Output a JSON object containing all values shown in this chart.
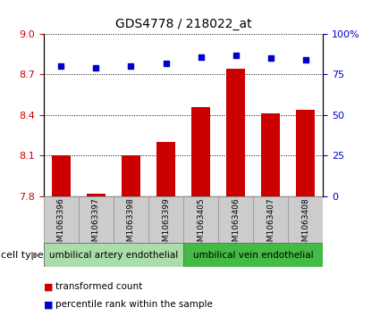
{
  "title": "GDS4778 / 218022_at",
  "samples": [
    "GSM1063396",
    "GSM1063397",
    "GSM1063398",
    "GSM1063399",
    "GSM1063405",
    "GSM1063406",
    "GSM1063407",
    "GSM1063408"
  ],
  "transformed_count": [
    8.1,
    7.82,
    8.1,
    8.2,
    8.46,
    8.74,
    8.41,
    8.44
  ],
  "percentile_rank": [
    80,
    79,
    80,
    82,
    86,
    87,
    85,
    84
  ],
  "ylim_left": [
    7.8,
    9.0
  ],
  "ylim_right": [
    0,
    100
  ],
  "yticks_left": [
    7.8,
    8.1,
    8.4,
    8.7,
    9.0
  ],
  "yticks_right": [
    0,
    25,
    50,
    75,
    100
  ],
  "ytick_labels_right": [
    "0",
    "25",
    "50",
    "75",
    "100%"
  ],
  "bar_color": "#cc0000",
  "dot_color": "#0000cc",
  "bar_bottom": 7.8,
  "cell_types": [
    {
      "label": "umbilical artery endothelial",
      "start": 0,
      "end": 4,
      "color": "#aaddaa"
    },
    {
      "label": "umbilical vein endothelial",
      "start": 4,
      "end": 8,
      "color": "#44bb44"
    }
  ],
  "cell_type_label": "cell type",
  "legend_items": [
    {
      "label": "transformed count",
      "color": "#cc0000"
    },
    {
      "label": "percentile rank within the sample",
      "color": "#0000cc"
    }
  ],
  "tick_label_color_left": "#cc0000",
  "tick_label_color_right": "#0000cc",
  "box_color": "#cccccc",
  "box_edge_color": "#999999"
}
